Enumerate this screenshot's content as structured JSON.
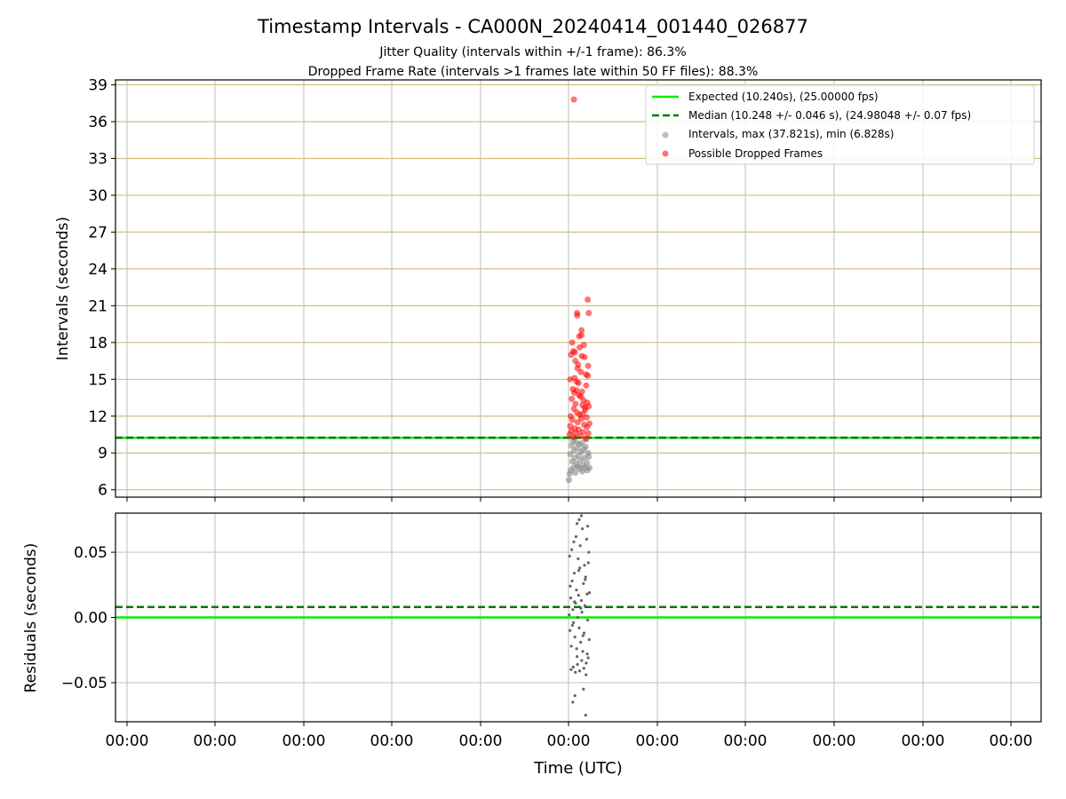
{
  "figure": {
    "title": "Timestamp Intervals - CA000N_20240414_001440_026877",
    "subtitle_1": "Jitter Quality (intervals within +/-1 frame): 86.3%",
    "subtitle_2": "Dropped Frame Rate (intervals >1 frames late within 50 FF files): 88.3%"
  },
  "colors": {
    "expected": "#00ee00",
    "median": "#007a00",
    "intervals": "#888888",
    "dropped": "#ff0000",
    "residual_points": "#666666",
    "top_grid": "#d4bf7a",
    "bottom_grid": "#c8c8c8"
  },
  "chart_data": [
    {
      "type": "scatter",
      "title": "Timestamp Intervals - CA000N_20240414_001440_026877",
      "xlabel": "",
      "ylabel": "Intervals (seconds)",
      "ylim": [
        5.4,
        39.4
      ],
      "yticks": [
        6,
        9,
        12,
        15,
        18,
        21,
        24,
        27,
        30,
        33,
        36,
        39
      ],
      "ytick_labels": [
        "6",
        "9",
        "12",
        "15",
        "18",
        "21",
        "24",
        "27",
        "30",
        "33",
        "36",
        "39"
      ],
      "grid": true,
      "legend_position": "top-right",
      "legend": [
        "Expected (10.240s), (25.00000 fps)",
        "Median (10.248 +/- 0.046 s), (24.98048 +/- 0.07 fps)",
        "Intervals, max (37.821s), min (6.828s)",
        "Possible Dropped Frames"
      ],
      "expected_interval": 10.24,
      "median_interval": 10.248,
      "max_interval": 37.821,
      "min_interval": 6.828,
      "series": [
        {
          "name": "Intervals, max (37.821s), min (6.828s)",
          "x": [
            0.02,
            0.05,
            0.08,
            0.11,
            0.14,
            0.17,
            0.2,
            0.23,
            0.26,
            0.29,
            0.32,
            0.35,
            0.38,
            0.41,
            0.44,
            0.47,
            0.5,
            0.53,
            0.56,
            0.59,
            0.62,
            0.65,
            0.68,
            0.71,
            0.74,
            0.77,
            0.8,
            0.83,
            0.86,
            0.89,
            0.92,
            0.95,
            0.98
          ],
          "y": [
            6.8,
            7.3,
            8.9,
            7.6,
            9.6,
            8.3,
            10.0,
            7.8,
            9.2,
            8.6,
            7.4,
            9.9,
            8.1,
            9.4,
            7.9,
            8.8,
            9.7,
            7.7,
            8.4,
            9.1,
            9.8,
            7.5,
            8.0,
            9.3,
            8.6,
            7.8,
            9.5,
            10.1,
            8.2,
            7.6,
            9.0,
            8.7,
            7.8
          ]
        },
        {
          "name": "Possible Dropped Frames",
          "x": [
            0.05,
            0.08,
            0.1,
            0.13,
            0.15,
            0.18,
            0.2,
            0.23,
            0.25,
            0.28,
            0.3,
            0.33,
            0.35,
            0.38,
            0.4,
            0.43,
            0.45,
            0.48,
            0.5,
            0.53,
            0.55,
            0.58,
            0.6,
            0.63,
            0.65,
            0.68,
            0.7,
            0.73,
            0.75,
            0.78,
            0.8,
            0.83,
            0.85,
            0.88,
            0.9,
            0.93,
            0.95,
            0.98,
            0.12,
            0.22,
            0.32,
            0.42,
            0.52,
            0.62,
            0.72,
            0.82,
            0.92,
            0.27,
            0.47,
            0.67,
            0.87,
            0.37,
            0.57,
            0.77,
            0.17,
            0.08,
            0.5,
            0.61,
            0.41,
            0.9,
            0.4,
            0.95,
            0.6,
            0.3,
            0.2
          ],
          "y": [
            10.5,
            11.2,
            12.0,
            10.8,
            13.4,
            11.7,
            14.2,
            10.3,
            12.6,
            15.1,
            11.0,
            13.0,
            10.6,
            14.8,
            12.3,
            11.5,
            16.2,
            10.9,
            13.7,
            12.1,
            10.4,
            15.6,
            11.8,
            14.0,
            12.9,
            10.7,
            13.3,
            11.3,
            16.8,
            12.5,
            10.2,
            14.5,
            11.9,
            13.1,
            15.3,
            10.6,
            12.8,
            11.4,
            17.0,
            17.3,
            16.5,
            15.9,
            17.6,
            16.9,
            17.8,
            15.4,
            16.1,
            13.9,
            14.7,
            12.2,
            11.1,
            14.1,
            13.6,
            12.7,
            18.0,
            15.0,
            18.5,
            19.0,
            20.2,
            21.5,
            20.4,
            20.4,
            18.6,
            17.2,
            37.8
          ]
        }
      ]
    },
    {
      "type": "scatter",
      "title": "",
      "xlabel": "Time (UTC)",
      "ylabel": "Residuals (seconds)",
      "ylim": [
        -0.08,
        0.08
      ],
      "yticks": [
        -0.05,
        0.0,
        0.05
      ],
      "ytick_labels": [
        "−0.05",
        "0.00",
        "0.05"
      ],
      "xtick_labels": [
        "00:00",
        "00:00",
        "00:00",
        "00:00",
        "00:00",
        "00:00",
        "00:00",
        "00:00",
        "00:00",
        "00:00",
        "00:00"
      ],
      "grid": true,
      "expected_residual": 0.0,
      "median_residual": 0.008,
      "series": [
        {
          "name": "Residuals",
          "x": [
            0.03,
            0.07,
            0.1,
            0.13,
            0.17,
            0.2,
            0.23,
            0.27,
            0.3,
            0.33,
            0.37,
            0.4,
            0.43,
            0.47,
            0.5,
            0.53,
            0.57,
            0.6,
            0.63,
            0.67,
            0.7,
            0.73,
            0.77,
            0.8,
            0.83,
            0.87,
            0.9,
            0.93,
            0.97,
            0.05,
            0.15,
            0.25,
            0.35,
            0.45,
            0.55,
            0.65,
            0.75,
            0.85,
            0.95,
            0.12,
            0.22,
            0.32,
            0.42,
            0.52,
            0.62,
            0.72,
            0.82,
            0.92,
            0.08,
            0.18,
            0.28,
            0.38,
            0.48,
            0.58,
            0.68,
            0.78,
            0.88,
            0.98,
            0.5,
            0.6,
            0.4,
            0.9,
            0.7,
            0.3,
            0.2,
            0.8
          ],
          "y": [
            0.002,
            -0.01,
            0.015,
            -0.022,
            0.028,
            0.006,
            -0.004,
            0.034,
            -0.015,
            0.011,
            0.021,
            -0.03,
            0.0,
            0.017,
            -0.008,
            0.038,
            -0.019,
            0.013,
            0.004,
            -0.026,
            0.026,
            -0.012,
            0.009,
            0.031,
            -0.035,
            0.018,
            -0.002,
            0.042,
            -0.017,
            0.047,
            0.052,
            0.058,
            0.062,
            0.045,
            0.055,
            0.068,
            0.04,
            0.06,
            0.05,
            -0.04,
            -0.038,
            -0.042,
            -0.036,
            -0.041,
            -0.033,
            -0.039,
            -0.044,
            -0.031,
            0.024,
            -0.006,
            0.012,
            -0.024,
            0.036,
            0.007,
            -0.014,
            0.029,
            -0.028,
            0.019,
            0.075,
            0.078,
            0.072,
            0.07,
            -0.055,
            -0.06,
            -0.065,
            -0.075
          ]
        }
      ]
    }
  ]
}
